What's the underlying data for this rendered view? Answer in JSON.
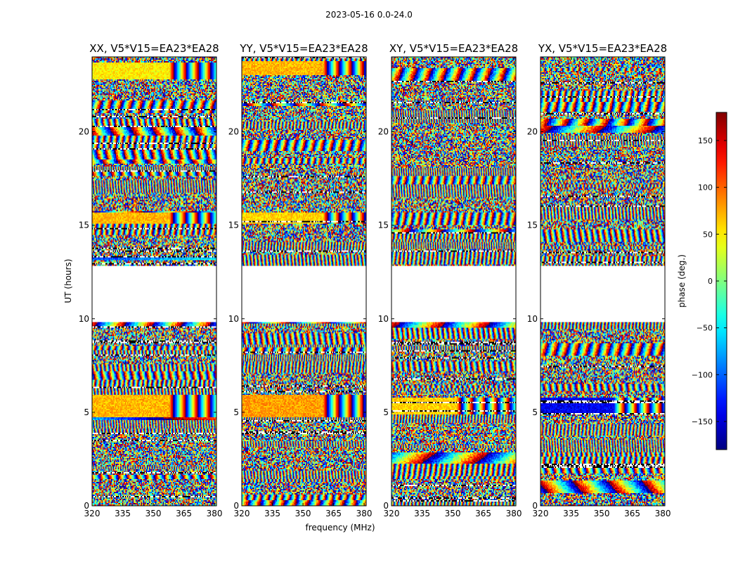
{
  "figure": {
    "suptitle": "2023-05-16 0.0-24.0"
  },
  "chart_data": {
    "type": "heatmap",
    "title": "2023-05-16 0.0-24.0",
    "xlabel": "frequency (MHz)",
    "ylabel": "UT (hours)",
    "xlim": [
      320,
      381
    ],
    "ylim": [
      0,
      24
    ],
    "x_ticks": [
      320,
      335,
      350,
      365,
      380
    ],
    "y_ticks": [
      0,
      5,
      10,
      15,
      20
    ],
    "colorbar": {
      "label": "phase (deg.)",
      "range": [
        -180,
        180
      ],
      "colormap": "jet",
      "ticks": [
        -150,
        -100,
        -50,
        0,
        50,
        100,
        150
      ]
    },
    "gap_hours": [
      9.8,
      12.8
    ],
    "panels": [
      {
        "title": "XX, V5*V15=EA23*EA28",
        "pol": "XX",
        "coherent_blocks": [
          {
            "ut": [
              4.7,
              5.9
            ],
            "freq_mhz": [
              320,
              358
            ],
            "phase_deg": 70
          },
          {
            "ut": [
              15.1,
              15.7
            ],
            "freq_mhz": [
              320,
              358
            ],
            "phase_deg": 70
          },
          {
            "ut": [
              22.8,
              23.7
            ],
            "freq_mhz": [
              320,
              358
            ],
            "phase_deg": 50
          }
        ]
      },
      {
        "title": "YY, V5*V15=EA23*EA28",
        "pol": "YY",
        "coherent_blocks": [
          {
            "ut": [
              4.7,
              5.9
            ],
            "freq_mhz": [
              320,
              360
            ],
            "phase_deg": 80
          },
          {
            "ut": [
              15.1,
              15.7
            ],
            "freq_mhz": [
              320,
              360
            ],
            "phase_deg": 60
          },
          {
            "ut": [
              23.0,
              23.8
            ],
            "freq_mhz": [
              320,
              360
            ],
            "phase_deg": 70
          }
        ]
      },
      {
        "title": "XY, V5*V15=EA23*EA28",
        "pol": "XY",
        "coherent_blocks": [
          {
            "ut": [
              4.9,
              5.8
            ],
            "freq_mhz": [
              320,
              352
            ],
            "phase_deg": 60
          }
        ]
      },
      {
        "title": "YX, V5*V15=EA23*EA28",
        "pol": "YX",
        "coherent_blocks": [
          {
            "ut": [
              4.9,
              5.8
            ],
            "freq_mhz": [
              320,
              356
            ],
            "phase_deg": -140
          }
        ]
      }
    ]
  }
}
